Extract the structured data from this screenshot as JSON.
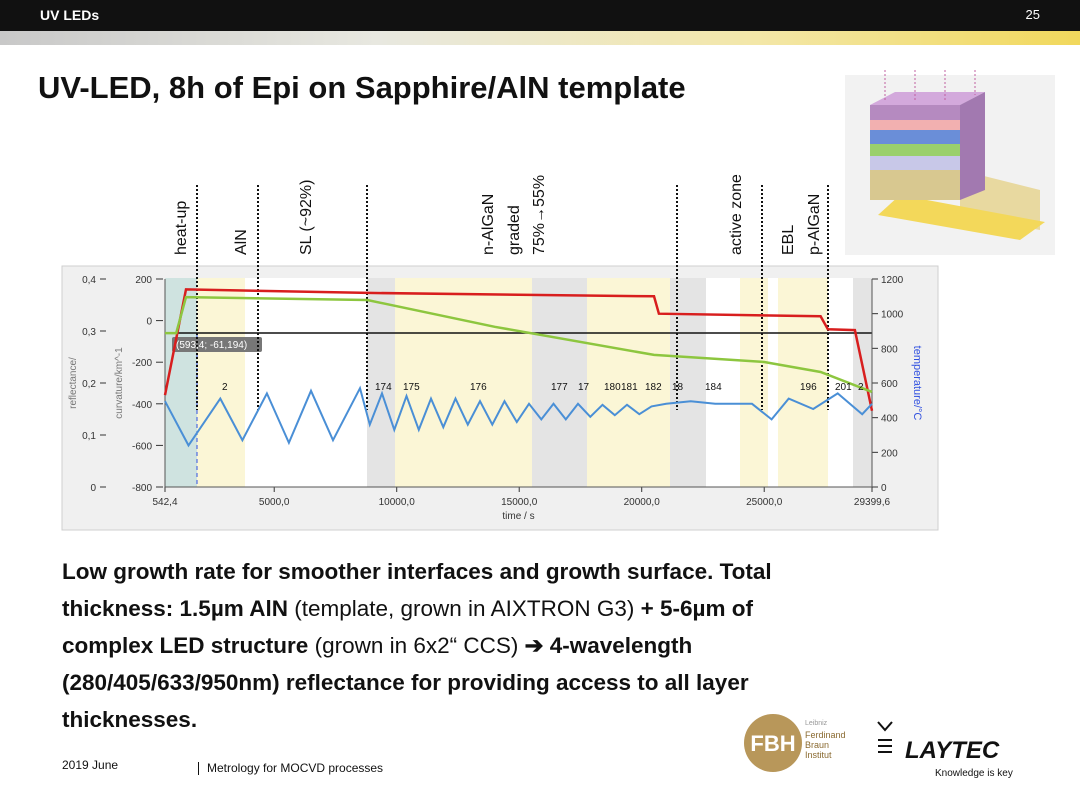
{
  "header": {
    "title": "UV LEDs",
    "page": "25"
  },
  "title": "UV-LED, 8h of Epi on Sapphire/AlN template",
  "phases": [
    {
      "lines": [
        "heat-up"
      ]
    },
    {
      "lines": [
        "AlN"
      ]
    },
    {
      "lines": [
        "SL (~92%)"
      ]
    },
    {
      "lines": [
        "n-AlGaN",
        "graded",
        "75%→55%"
      ]
    },
    {
      "lines": [
        "active zone"
      ]
    },
    {
      "lines": [
        "EBL",
        "p-AlGaN"
      ]
    }
  ],
  "chart": {
    "type": "line",
    "xlabel": "time / s",
    "ylabel": "reflectance/",
    "y2label": "curvature/km^-1",
    "y3label": "temperature/°C",
    "cursor_label": "(593,4; -61,194)",
    "markers": [
      "2",
      "174",
      "175",
      "176",
      "177",
      "17",
      "180",
      "181",
      "182",
      "18",
      "184",
      "196",
      "201",
      "2"
    ],
    "xlim": [
      542.4,
      29399.6
    ],
    "xticks": [
      {
        "value": 542.4,
        "label": "542,4"
      },
      {
        "value": 5000,
        "label": "5000,0"
      },
      {
        "value": 10000,
        "label": "10000,0"
      },
      {
        "value": 15000,
        "label": "15000,0"
      },
      {
        "value": 20000,
        "label": "20000,0"
      },
      {
        "value": 25000,
        "label": "25000,0"
      },
      {
        "value": 29399.6,
        "label": "29399,6"
      }
    ],
    "ylim": [
      0,
      0.4
    ],
    "yticks": [
      0,
      {
        "value": 0.1,
        "label": "0,1"
      },
      {
        "value": 0.2,
        "label": "0,2"
      },
      {
        "value": 0.3,
        "label": "0,3"
      },
      {
        "value": 0.4,
        "label": "0,4"
      }
    ],
    "y2lim": [
      -800,
      200
    ],
    "y2ticks": [
      -800,
      -600,
      -400,
      -200,
      0,
      200
    ],
    "y3lim": [
      0,
      1200
    ],
    "y3ticks": [
      0,
      200,
      400,
      600,
      800,
      1000,
      1200
    ],
    "series": [
      {
        "color": "#d81e1e",
        "axis": "y3",
        "x": [
          542.4,
          1400,
          8800,
          20500,
          20700,
          27300,
          27600,
          28700,
          29399.6
        ],
        "values": [
          530,
          1140,
          1120,
          1100,
          1000,
          985,
          910,
          905,
          440
        ]
      },
      {
        "color": "#8dc63f",
        "axis": "y2",
        "x": [
          542.4,
          1000,
          1400,
          8800,
          14000,
          20500,
          25000,
          27300,
          29399.6
        ],
        "values": [
          -60,
          -60,
          113,
          99,
          -30,
          -165,
          -199,
          -247,
          -343
        ]
      },
      {
        "color": "#4a8fd6",
        "axis": "y",
        "x": [
          542.4,
          1500,
          2800,
          3700,
          4700,
          5600,
          6500,
          7400,
          8500,
          8900,
          9400,
          9900,
          10400,
          10900,
          11400,
          11900,
          12400,
          12900,
          13400,
          13900,
          14400,
          14900,
          15400,
          15900,
          16400,
          16900,
          17400,
          17900,
          18400,
          18900,
          19400,
          19900,
          20400,
          21000,
          22000,
          23000,
          24500,
          25300,
          26000,
          27000,
          28000,
          29000,
          29399.6
        ],
        "values": [
          0.165,
          0.08,
          0.17,
          0.09,
          0.18,
          0.085,
          0.185,
          0.09,
          0.19,
          0.12,
          0.18,
          0.11,
          0.175,
          0.11,
          0.17,
          0.115,
          0.17,
          0.12,
          0.165,
          0.12,
          0.165,
          0.125,
          0.16,
          0.13,
          0.16,
          0.13,
          0.16,
          0.135,
          0.158,
          0.138,
          0.158,
          0.14,
          0.155,
          0.16,
          0.165,
          0.16,
          0.16,
          0.13,
          0.17,
          0.15,
          0.18,
          0.14,
          0.16
        ]
      }
    ]
  },
  "paragraph": {
    "lines": [
      {
        "runs": [
          {
            "text": "Low growth rate for smoother interfaces and growth surface. Total",
            "bold": true
          }
        ]
      },
      {
        "runs": [
          {
            "text": "thickness: 1.5µm AlN",
            "bold": true
          },
          {
            "text": " (template, grown in AIXTRON G3) ",
            "bold": false
          },
          {
            "text": "+ 5-6µm of",
            "bold": true
          }
        ]
      },
      {
        "runs": [
          {
            "text": "complex LED structure",
            "bold": true
          },
          {
            "text": " (grown in 6x2“ CCS) ",
            "bold": false
          },
          {
            "text": "➔ 4-wavelength",
            "bold": true
          }
        ]
      },
      {
        "runs": [
          {
            "text": "(280/405/633/950nm) reflectance for providing access to all layer",
            "bold": true
          }
        ]
      },
      {
        "runs": [
          {
            "text": "thicknesses.",
            "bold": true
          }
        ]
      }
    ]
  },
  "footer": {
    "date": "2019 June",
    "text": "Metrology for MOCVD processes"
  },
  "logos": {
    "fbh": "FBH",
    "fbh_top": "Leibniz",
    "fbh_lines": [
      "Ferdinand",
      "Braun",
      "Institut"
    ],
    "laytec": "LAYTEC",
    "laytec_slogan": "Knowledge is key"
  }
}
